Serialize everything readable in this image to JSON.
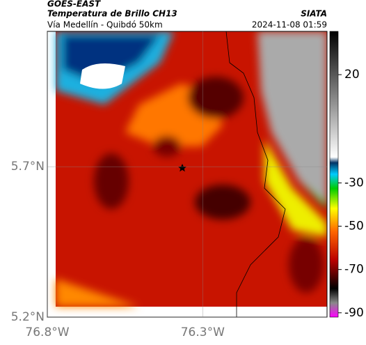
{
  "header": {
    "title": "GOES-EAST",
    "subtitle": "Temperatura de Brillo CH13",
    "description": "Vía Medellín - Quibdó 50km",
    "source": "SIATA",
    "datetime": "2024-11-08 01:59"
  },
  "map": {
    "xlim": [
      -76.8,
      -75.9
    ],
    "ylim": [
      5.2,
      6.15
    ],
    "xticks": [
      {
        "value": -76.8,
        "label": "76.8°W"
      },
      {
        "value": -76.3,
        "label": "76.3°W"
      }
    ],
    "yticks": [
      {
        "value": 5.7,
        "label": "5.7°N"
      },
      {
        "value": 5.2,
        "label": "5.2°N"
      }
    ]
  },
  "colorbar": {
    "lim": [
      -92,
      40
    ],
    "ticks": [
      20,
      -30,
      -50,
      -70,
      -90
    ]
  }
}
